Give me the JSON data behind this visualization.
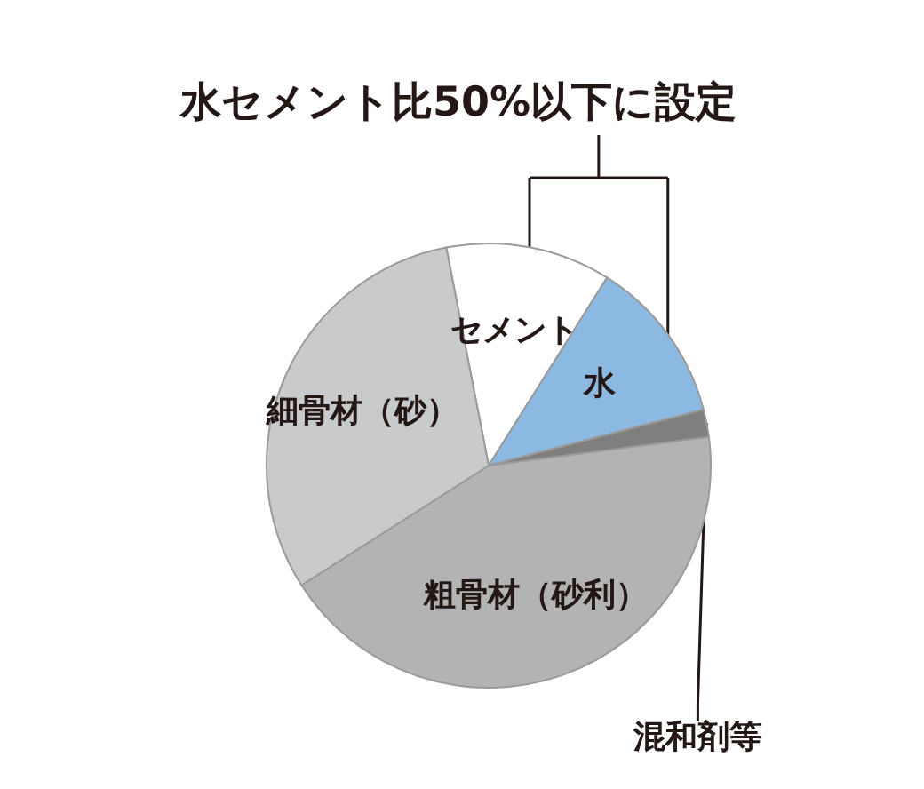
{
  "chart_data": {
    "type": "pie",
    "categories": [
      "セメント",
      "水",
      "混和剤等",
      "粗骨材（砂利）",
      "細骨材（砂）"
    ],
    "values": [
      12,
      12,
      2,
      43,
      31
    ],
    "colors": [
      "#ffffff",
      "#8cb9e1",
      "#7f7f7f",
      "#b3b3b4",
      "#c9cacb"
    ],
    "annotations": [
      "水セメント比50%以下に設定"
    ]
  }
}
